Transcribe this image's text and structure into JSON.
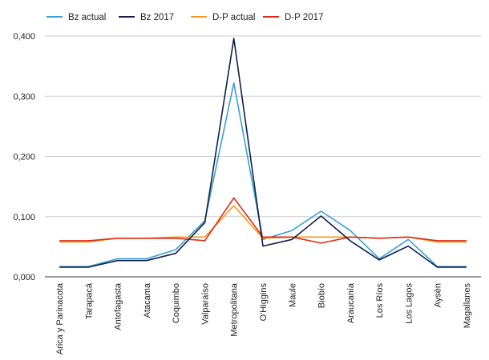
{
  "chart_data": {
    "type": "line",
    "categories": [
      "Arica y Parinacota",
      "Tarapacá",
      "Antofagasta",
      "Atacama",
      "Coquimbo",
      "Valparaíso",
      "Metropolitana",
      "O'Higgins",
      "Maule",
      "Biobío",
      "Araucanía",
      "Los Ríos",
      "Los Lagos",
      "Aysén",
      "Magallanes"
    ],
    "y_tick_labels": [
      "0,000",
      "0,100",
      "0,200",
      "0,300",
      "0,400"
    ],
    "ylim": [
      0,
      0.4
    ],
    "grid": "horizontal",
    "legend_position": "top-left",
    "series": [
      {
        "name": "Bz actual",
        "color": "#3a9fd0",
        "values": [
          0.017,
          0.017,
          0.03,
          0.03,
          0.045,
          0.093,
          0.322,
          0.062,
          0.077,
          0.109,
          0.077,
          0.03,
          0.062,
          0.017,
          0.017
        ]
      },
      {
        "name": "Bz 2017",
        "color": "#0d1f4a",
        "values": [
          0.016,
          0.016,
          0.027,
          0.027,
          0.039,
          0.09,
          0.396,
          0.051,
          0.062,
          0.101,
          0.06,
          0.028,
          0.051,
          0.016,
          0.016
        ]
      },
      {
        "name": "D-P actual",
        "color": "#f29a1f",
        "values": [
          0.058,
          0.058,
          0.064,
          0.064,
          0.066,
          0.066,
          0.118,
          0.064,
          0.066,
          0.066,
          0.066,
          0.064,
          0.066,
          0.058,
          0.058
        ]
      },
      {
        "name": "D-P 2017",
        "color": "#e02b12",
        "values": [
          0.06,
          0.06,
          0.064,
          0.064,
          0.064,
          0.06,
          0.131,
          0.066,
          0.066,
          0.056,
          0.066,
          0.064,
          0.066,
          0.06,
          0.06
        ]
      }
    ]
  }
}
